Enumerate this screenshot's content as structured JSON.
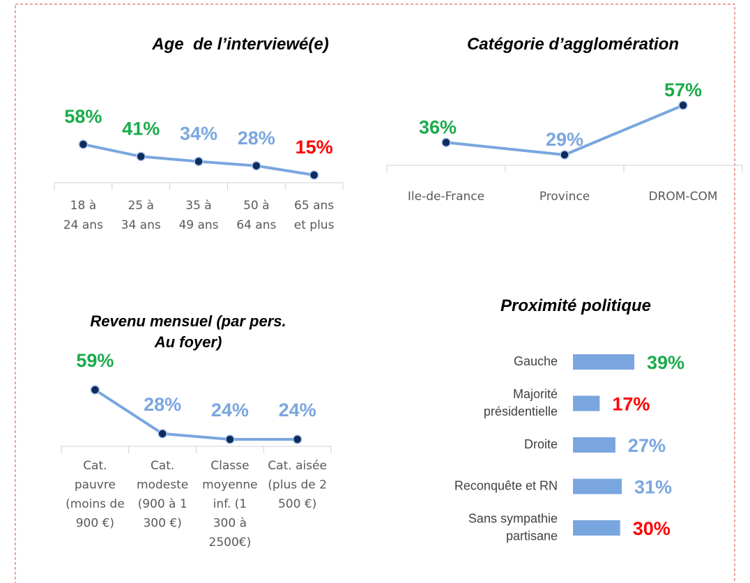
{
  "chart_data": [
    {
      "type": "line",
      "title": "Age  de l’interviewé(e)",
      "categories": [
        "18 à\n24 ans",
        "25 à\n34 ans",
        "35 à\n49 ans",
        "50 à\n64 ans",
        "65 ans\net plus"
      ],
      "values": [
        58,
        41,
        34,
        28,
        15
      ],
      "value_labels": [
        "58%",
        "41%",
        "34%",
        "28%",
        "15%"
      ],
      "color": "#7aa6df",
      "marker_color": "#0c2c5e",
      "value_label_colors": [
        "#1aab4b",
        "#1aab4b",
        "#7aa6df",
        "#7aa6df",
        "#ff0000"
      ]
    },
    {
      "type": "line",
      "title": "Catégorie d’agglomération",
      "categories": [
        "Ile-de-France",
        "Province",
        "DROM-COM"
      ],
      "values": [
        36,
        29,
        57
      ],
      "value_labels": [
        "36%",
        "29%",
        "57%"
      ],
      "color": "#7aa6df",
      "marker_color": "#0c2c5e",
      "value_label_colors": [
        "#1aab4b",
        "#7aa6df",
        "#1aab4b"
      ]
    },
    {
      "type": "line",
      "title": "Revenu mensuel (par pers.\nAu foyer)",
      "categories": [
        "Cat.\npauvre\n(moins de\n900 €)",
        "Cat.\nmodeste\n(900 à 1\n300 €)",
        "Classe\nmoyenne\ninf. (1\n300 à\n2500€)",
        "Cat. aisée\n(plus de 2\n500 €)"
      ],
      "values": [
        59,
        28,
        24,
        24
      ],
      "value_labels": [
        "59%",
        "28%",
        "24%",
        "24%"
      ],
      "color": "#7aa6df",
      "marker_color": "#0c2c5e",
      "value_label_colors": [
        "#1aab4b",
        "#7aa6df",
        "#7aa6df",
        "#7aa6df"
      ]
    },
    {
      "type": "bar",
      "title": "Proximité politique",
      "categories": [
        "Gauche",
        "Majorité\nprésidentielle",
        "Droite",
        "Reconquête et RN",
        "Sans sympathie\npartisane"
      ],
      "values": [
        39,
        17,
        27,
        31,
        30
      ],
      "value_labels": [
        "39%",
        "17%",
        "27%",
        "31%",
        "30%"
      ],
      "color": "#7aa6df",
      "value_label_colors": [
        "#1aab4b",
        "#ff0000",
        "#7aa6df",
        "#7aa6df",
        "#ff0000"
      ]
    }
  ]
}
